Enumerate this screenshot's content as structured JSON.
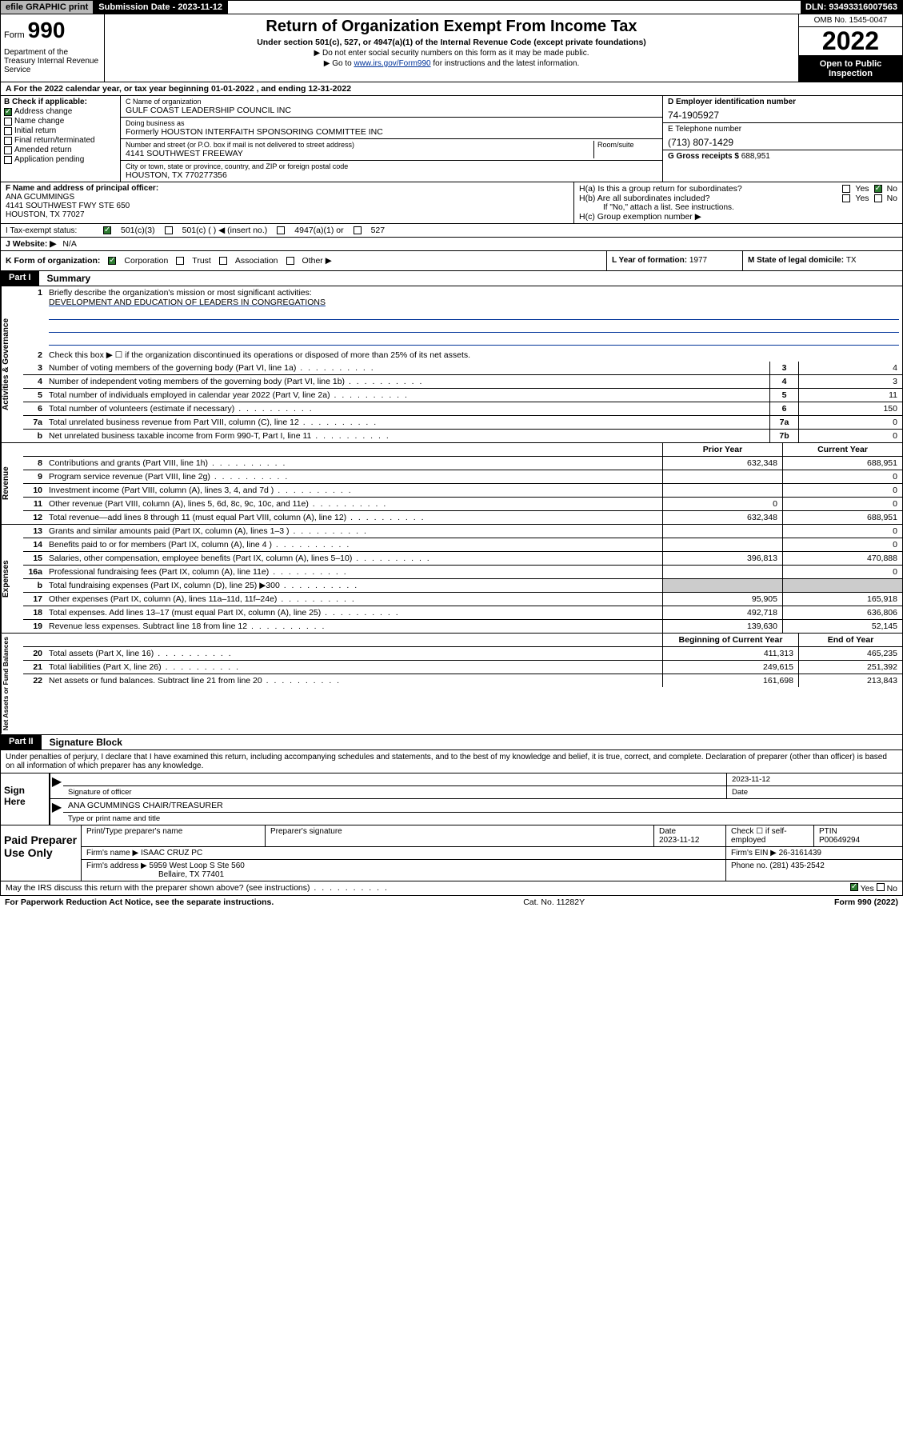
{
  "topbar": {
    "efile": "efile GRAPHIC print",
    "submission_label": "Submission Date - 2023-11-12",
    "dln_label": "DLN: 93493316007563"
  },
  "header": {
    "form_word": "Form",
    "form_num": "990",
    "title": "Return of Organization Exempt From Income Tax",
    "sub": "Under section 501(c), 527, or 4947(a)(1) of the Internal Revenue Code (except private foundations)",
    "note1": "▶ Do not enter social security numbers on this form as it may be made public.",
    "note2_pre": "▶ Go to ",
    "note2_link": "www.irs.gov/Form990",
    "note2_post": " for instructions and the latest information.",
    "omb": "OMB No. 1545-0047",
    "year": "2022",
    "open": "Open to Public Inspection",
    "dept": "Department of the Treasury Internal Revenue Service"
  },
  "line_a": "A For the 2022 calendar year, or tax year beginning 01-01-2022   , and ending 12-31-2022",
  "box_b": {
    "label": "B Check if applicable:",
    "items": [
      "Address change",
      "Name change",
      "Initial return",
      "Final return/terminated",
      "Amended return",
      "Application pending"
    ]
  },
  "box_c": {
    "name_label": "C Name of organization",
    "name": "GULF COAST LEADERSHIP COUNCIL INC",
    "dba_label": "Doing business as",
    "dba": "Formerly HOUSTON INTERFAITH SPONSORING COMMITTEE INC",
    "addr_label": "Number and street (or P.O. box if mail is not delivered to street address)",
    "room_label": "Room/suite",
    "addr": "4141 SOUTHWEST FREEWAY",
    "city_label": "City or town, state or province, country, and ZIP or foreign postal code",
    "city": "HOUSTON, TX  770277356"
  },
  "box_d": {
    "label": "D Employer identification number",
    "val": "74-1905927"
  },
  "box_e": {
    "label": "E Telephone number",
    "val": "(713) 807-1429"
  },
  "box_g": {
    "label": "G Gross receipts $ ",
    "val": "688,951"
  },
  "box_f": {
    "label": "F Name and address of principal officer:",
    "line1": "ANA GCUMMINGS",
    "line2": "4141 SOUTHWEST FWY STE 650",
    "line3": "HOUSTON, TX  77027"
  },
  "box_h": {
    "ha": "H(a)  Is this a group return for subordinates?",
    "hb": "H(b)  Are all subordinates included?",
    "hb_note": "If \"No,\" attach a list. See instructions.",
    "hc": "H(c)  Group exemption number ▶",
    "yes": "Yes",
    "no": "No"
  },
  "tax_status": {
    "label": "I   Tax-exempt status:",
    "o1": "501(c)(3)",
    "o2": "501(c) (   ) ◀ (insert no.)",
    "o3": "4947(a)(1) or",
    "o4": "527"
  },
  "website": {
    "label": "J   Website: ▶",
    "val": "N/A"
  },
  "box_k": {
    "label": "K Form of organization:",
    "o1": "Corporation",
    "o2": "Trust",
    "o3": "Association",
    "o4": "Other ▶"
  },
  "box_l": {
    "label": "L Year of formation: ",
    "val": "1977"
  },
  "box_m": {
    "label": "M State of legal domicile: ",
    "val": "TX"
  },
  "parts": {
    "p1_tag": "Part I",
    "p1_title": "Summary",
    "p2_tag": "Part II",
    "p2_title": "Signature Block"
  },
  "section1": {
    "tab": "Activities & Governance",
    "l1": "Briefly describe the organization's mission or most significant activities:",
    "mission": "DEVELOPMENT AND EDUCATION OF LEADERS IN CONGREGATIONS",
    "l2": "Check this box ▶ ☐  if the organization discontinued its operations or disposed of more than 25% of its net assets.",
    "rows": [
      {
        "n": "3",
        "t": "Number of voting members of the governing body (Part VI, line 1a)",
        "c": "3",
        "v": "4"
      },
      {
        "n": "4",
        "t": "Number of independent voting members of the governing body (Part VI, line 1b)",
        "c": "4",
        "v": "3"
      },
      {
        "n": "5",
        "t": "Total number of individuals employed in calendar year 2022 (Part V, line 2a)",
        "c": "5",
        "v": "11"
      },
      {
        "n": "6",
        "t": "Total number of volunteers (estimate if necessary)",
        "c": "6",
        "v": "150"
      },
      {
        "n": "7a",
        "t": "Total unrelated business revenue from Part VIII, column (C), line 12",
        "c": "7a",
        "v": "0"
      },
      {
        "n": "b",
        "t": "Net unrelated business taxable income from Form 990-T, Part I, line 11",
        "c": "7b",
        "v": "0"
      }
    ]
  },
  "headers2": {
    "prior": "Prior Year",
    "current": "Current Year",
    "begin": "Beginning of Current Year",
    "end": "End of Year"
  },
  "section_rev": {
    "tab": "Revenue",
    "rows": [
      {
        "n": "8",
        "t": "Contributions and grants (Part VIII, line 1h)",
        "p": "632,348",
        "c": "688,951"
      },
      {
        "n": "9",
        "t": "Program service revenue (Part VIII, line 2g)",
        "p": "",
        "c": "0"
      },
      {
        "n": "10",
        "t": "Investment income (Part VIII, column (A), lines 3, 4, and 7d )",
        "p": "",
        "c": "0"
      },
      {
        "n": "11",
        "t": "Other revenue (Part VIII, column (A), lines 5, 6d, 8c, 9c, 10c, and 11e)",
        "p": "0",
        "c": "0"
      },
      {
        "n": "12",
        "t": "Total revenue—add lines 8 through 11 (must equal Part VIII, column (A), line 12)",
        "p": "632,348",
        "c": "688,951"
      }
    ]
  },
  "section_exp": {
    "tab": "Expenses",
    "rows": [
      {
        "n": "13",
        "t": "Grants and similar amounts paid (Part IX, column (A), lines 1–3 )",
        "p": "",
        "c": "0"
      },
      {
        "n": "14",
        "t": "Benefits paid to or for members (Part IX, column (A), line 4 )",
        "p": "",
        "c": "0"
      },
      {
        "n": "15",
        "t": "Salaries, other compensation, employee benefits (Part IX, column (A), lines 5–10)",
        "p": "396,813",
        "c": "470,888"
      },
      {
        "n": "16a",
        "t": "Professional fundraising fees (Part IX, column (A), line 11e)",
        "p": "",
        "c": "0"
      },
      {
        "n": "b",
        "t": "Total fundraising expenses (Part IX, column (D), line 25) ▶300",
        "p": "",
        "c": "",
        "shade": true
      },
      {
        "n": "17",
        "t": "Other expenses (Part IX, column (A), lines 11a–11d, 11f–24e)",
        "p": "95,905",
        "c": "165,918"
      },
      {
        "n": "18",
        "t": "Total expenses. Add lines 13–17 (must equal Part IX, column (A), line 25)",
        "p": "492,718",
        "c": "636,806"
      },
      {
        "n": "19",
        "t": "Revenue less expenses. Subtract line 18 from line 12",
        "p": "139,630",
        "c": "52,145"
      }
    ]
  },
  "section_net": {
    "tab": "Net Assets or Fund Balances",
    "rows": [
      {
        "n": "20",
        "t": "Total assets (Part X, line 16)",
        "p": "411,313",
        "c": "465,235"
      },
      {
        "n": "21",
        "t": "Total liabilities (Part X, line 26)",
        "p": "249,615",
        "c": "251,392"
      },
      {
        "n": "22",
        "t": "Net assets or fund balances. Subtract line 21 from line 20",
        "p": "161,698",
        "c": "213,843"
      }
    ]
  },
  "sig": {
    "intro": "Under penalties of perjury, I declare that I have examined this return, including accompanying schedules and statements, and to the best of my knowledge and belief, it is true, correct, and complete. Declaration of preparer (other than officer) is based on all information of which preparer has any knowledge.",
    "sign_here": "Sign Here",
    "sig_officer": "Signature of officer",
    "date": "Date",
    "date_val": "2023-11-12",
    "name_title": "ANA GCUMMINGS  CHAIR/TREASURER",
    "name_label": "Type or print name and title"
  },
  "prep": {
    "label": "Paid Preparer Use Only",
    "h1": "Print/Type preparer's name",
    "h2": "Preparer's signature",
    "h3": "Date",
    "h3v": "2023-11-12",
    "h4": "Check ☐ if self-employed",
    "h5": "PTIN",
    "h5v": "P00649294",
    "firm_label": "Firm's name    ▶",
    "firm": "ISAAC CRUZ PC",
    "ein_label": "Firm's EIN ▶",
    "ein": "26-3161439",
    "addr_label": "Firm's address ▶",
    "addr1": "5959 West Loop S Ste 560",
    "addr2": "Bellaire, TX  77401",
    "phone_label": "Phone no. ",
    "phone": "(281) 435-2542"
  },
  "discuss": {
    "text": "May the IRS discuss this return with the preparer shown above? (see instructions)",
    "yes": "Yes",
    "no": "No"
  },
  "footer": {
    "left": "For Paperwork Reduction Act Notice, see the separate instructions.",
    "mid": "Cat. No. 11282Y",
    "right": "Form 990 (2022)"
  }
}
